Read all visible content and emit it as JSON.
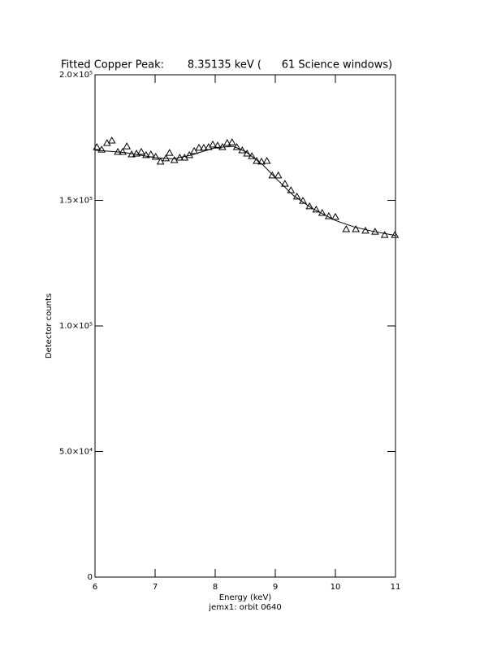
{
  "chart_data": {
    "type": "scatter",
    "title": "Fitted Copper Peak:       8.35135 keV (      61 Science windows)",
    "x_label": "Energy (keV)",
    "subtitle": "jemx1: orbit 0640",
    "y_label": "Detector counts",
    "xlim": [
      6,
      11
    ],
    "xticks": [
      6,
      7,
      8,
      9,
      10,
      11
    ],
    "ylim": [
      0,
      200000
    ],
    "yticks": [
      0,
      {
        "value": 50000,
        "label": "5.0×10⁴"
      },
      {
        "value": 100000,
        "label": "1.0×10⁵"
      },
      {
        "value": 150000,
        "label": "1.5×10⁵"
      },
      {
        "value": 200000,
        "label": "2.0×10⁵"
      }
    ],
    "series": [
      {
        "name": "Data",
        "color": "#000000",
        "marker": "triangle",
        "x": [
          6.03,
          6.11,
          6.2,
          6.28,
          6.38,
          6.46,
          6.53,
          6.61,
          6.69,
          6.77,
          6.85,
          6.93,
          7.01,
          7.09,
          7.18,
          7.24,
          7.32,
          7.41,
          7.49,
          7.57,
          7.65,
          7.73,
          7.81,
          7.89,
          7.96,
          8.04,
          8.12,
          8.2,
          8.28,
          8.36,
          8.45,
          8.53,
          8.61,
          8.69,
          8.77,
          8.86,
          8.95,
          9.05,
          9.16,
          9.26,
          9.36,
          9.46,
          9.57,
          9.68,
          9.78,
          9.89,
          10.0,
          10.18,
          10.34,
          10.5,
          10.66,
          10.82,
          10.99
        ],
        "values": [
          171200,
          170200,
          172800,
          173800,
          169300,
          169300,
          171500,
          168300,
          168600,
          169300,
          168000,
          168300,
          167300,
          165400,
          166700,
          168900,
          166000,
          167000,
          167000,
          168000,
          169600,
          170900,
          170900,
          171200,
          172200,
          171800,
          171200,
          172800,
          173100,
          171200,
          169900,
          168600,
          167600,
          165700,
          165400,
          165700,
          159900,
          159900,
          156600,
          154000,
          151500,
          149800,
          147600,
          146300,
          145000,
          143700,
          143400,
          138500,
          138500,
          137900,
          137500,
          136200,
          136200
        ]
      },
      {
        "name": "Fit",
        "color": "#000000",
        "marker": "line",
        "x": [
          6.0,
          6.5,
          7.0,
          7.3,
          7.6,
          8.0,
          8.3,
          8.5,
          8.8,
          9.0,
          9.3,
          9.6,
          10.0,
          10.3,
          10.6,
          11.0
        ],
        "values": [
          170000,
          169000,
          167000,
          166500,
          168000,
          171000,
          171500,
          169500,
          164000,
          159000,
          152000,
          147000,
          142000,
          139500,
          137800,
          136000
        ]
      }
    ]
  }
}
